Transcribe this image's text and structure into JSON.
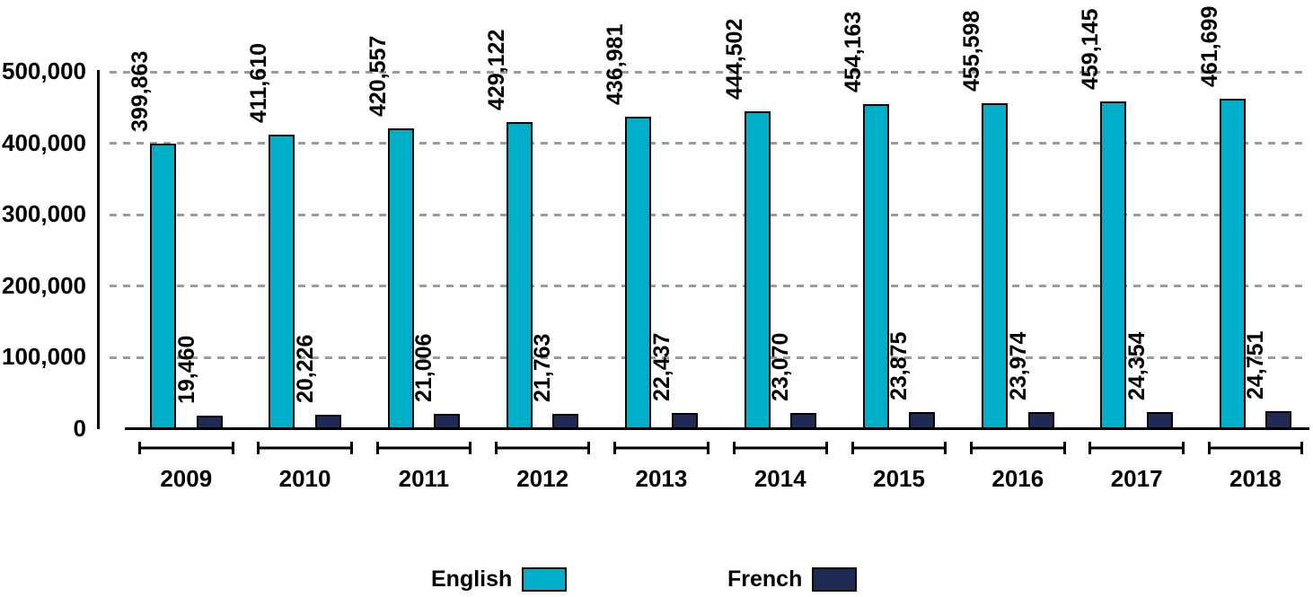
{
  "chart_data": {
    "type": "bar",
    "title": "",
    "xlabel": "",
    "ylabel": "",
    "categories": [
      "2009",
      "2010",
      "2011",
      "2012",
      "2013",
      "2014",
      "2015",
      "2016",
      "2017",
      "2018"
    ],
    "series": [
      {
        "name": "English",
        "color": "#00AEC7",
        "values": [
          399863,
          411610,
          420557,
          429122,
          436981,
          444502,
          454163,
          455598,
          459145,
          461699
        ],
        "value_labels": [
          "399,863",
          "411,610",
          "420,557",
          "429,122",
          "436,981",
          "444,502",
          "454,163",
          "455,598",
          "459,145",
          "461,699"
        ]
      },
      {
        "name": "French",
        "color": "#1F2B55",
        "values": [
          19460,
          20226,
          21006,
          21763,
          22437,
          23070,
          23875,
          23974,
          24354,
          24751
        ],
        "value_labels": [
          "19,460",
          "20,226",
          "21,006",
          "21,763",
          "22,437",
          "23,070",
          "23,875",
          "23,974",
          "24,354",
          "24,751"
        ]
      }
    ],
    "ylim": [
      0,
      500000
    ],
    "yticks": [
      0,
      100000,
      200000,
      300000,
      400000,
      500000
    ],
    "ytick_labels": [
      "0",
      "100,000",
      "200,000",
      "300,000",
      "400,000",
      "500,000"
    ],
    "bar_value_labels_rotated": true,
    "grid": "horizontal-dashed",
    "gridline_color": "#9B9B9B",
    "axis_color": "#000000",
    "text_color": "#000000",
    "legend_position": "bottom"
  }
}
